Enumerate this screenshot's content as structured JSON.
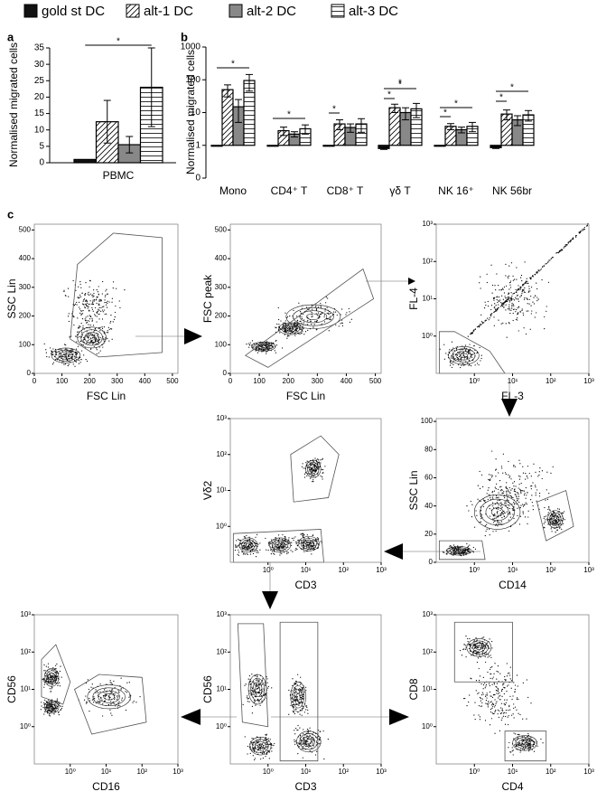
{
  "chart_data": [
    {
      "type": "bar",
      "panel_label": "a",
      "ylabel": "Normalised migrated cells",
      "categories": [
        "PBMC"
      ],
      "series": [
        {
          "name": "gold st DC",
          "color": "#111111",
          "hatch": null,
          "values": [
            1
          ],
          "errors": [
            0
          ]
        },
        {
          "name": "alt-1 DC",
          "color": "#ffffff",
          "hatch": "diagonal",
          "values": [
            12.5
          ],
          "errors": [
            6.5
          ]
        },
        {
          "name": "alt-2 DC",
          "color": "#888888",
          "hatch": null,
          "values": [
            5.5
          ],
          "errors": [
            2.5
          ]
        },
        {
          "name": "alt-3 DC",
          "color": "#ffffff",
          "hatch": "horizontal",
          "values": [
            23
          ],
          "errors": [
            12
          ]
        }
      ],
      "ylim": [
        0,
        35
      ],
      "yticks": [
        0,
        5,
        10,
        15,
        20,
        25,
        30,
        35
      ],
      "annotations": [
        "*"
      ]
    },
    {
      "type": "bar",
      "panel_label": "b",
      "ylabel": "Normalised migrated cells",
      "log_scale": true,
      "categories": [
        "Mono",
        "CD4⁺ T",
        "CD8⁺ T",
        "γδ T",
        "NK 16⁺",
        "NK 56br"
      ],
      "series": [
        {
          "color": "#111111",
          "hatch": null,
          "values": [
            1,
            1,
            1,
            0.8,
            1,
            0.85
          ],
          "errors": [
            0,
            0,
            0,
            0.05,
            0,
            0.05
          ]
        },
        {
          "color": "#ffffff",
          "hatch": "diagonal",
          "values": [
            50,
            2.8,
            4.5,
            14,
            3.8,
            9
          ],
          "errors": [
            20,
            0.8,
            1.5,
            4,
            0.8,
            3
          ]
        },
        {
          "color": "#888888",
          "hatch": null,
          "values": [
            15,
            2.2,
            3.5,
            10,
            3,
            6
          ],
          "errors": [
            10,
            0.4,
            1,
            4,
            0.6,
            2
          ]
        },
        {
          "color": "#ffffff",
          "hatch": "horizontal",
          "values": [
            95,
            3.2,
            4.5,
            13,
            3.8,
            8.5
          ],
          "errors": [
            50,
            1,
            2,
            6,
            1.2,
            3
          ]
        }
      ],
      "ylim": [
        0.1,
        1000
      ],
      "yticks": [
        {
          "value": 0.1,
          "label": "0"
        },
        1,
        10,
        100,
        1000
      ],
      "annotations": [
        "*",
        "*",
        "*",
        "*",
        "*",
        "*",
        "*",
        "*",
        "*",
        "*"
      ]
    }
  ],
  "flow_panel_label": "c",
  "flow_panels": [
    {
      "xlabel": "FSC Lin",
      "ylabel": "SSC Lin",
      "xlim": [
        0,
        520
      ],
      "ylim": [
        0,
        520
      ],
      "xticks": [
        0,
        100,
        200,
        300,
        400,
        500
      ],
      "yticks": [
        0,
        100,
        200,
        300,
        400,
        500
      ]
    },
    {
      "xlabel": "FSC Lin",
      "ylabel": "FSC peak",
      "xlim": [
        0,
        520
      ],
      "ylim": [
        0,
        520
      ],
      "xticks": [
        0,
        100,
        200,
        300,
        400,
        500
      ],
      "yticks": [
        0,
        100,
        200,
        300,
        400,
        500
      ]
    },
    {
      "xlabel": "FL-3",
      "ylabel": "FL-4",
      "xlog": true,
      "ylog": true,
      "xlim": [
        0.1,
        1000
      ],
      "ylim": [
        0.1,
        1000
      ],
      "xticks": [
        {
          "value": 1,
          "label": "10⁰"
        },
        {
          "value": 10,
          "label": "10¹"
        },
        {
          "value": 100,
          "label": "10²"
        },
        {
          "value": 1000,
          "label": "10³"
        }
      ],
      "yticks": [
        {
          "value": 1,
          "label": "10⁰"
        },
        {
          "value": 10,
          "label": "10¹"
        },
        {
          "value": 100,
          "label": "10²"
        },
        {
          "value": 1000,
          "label": "10³"
        }
      ]
    },
    {
      "xlabel": "CD3",
      "ylabel": "Vδ2",
      "xlog": true,
      "ylog": true,
      "xlim": [
        0.1,
        1000
      ],
      "ylim": [
        0.1,
        1000
      ],
      "xticks": [
        {
          "value": 1,
          "label": "10⁰"
        },
        {
          "value": 10,
          "label": "10¹"
        },
        {
          "value": 100,
          "label": "10²"
        },
        {
          "value": 1000,
          "label": "10³"
        }
      ],
      "yticks": [
        {
          "value": 1,
          "label": "10⁰"
        },
        {
          "value": 10,
          "label": "10¹"
        },
        {
          "value": 100,
          "label": "10²"
        },
        {
          "value": 1000,
          "label": "10³"
        }
      ]
    },
    {
      "xlabel": "CD14",
      "ylabel": "SSC Lin",
      "xlog": true,
      "xlim": [
        0.1,
        1000
      ],
      "ylim": [
        0,
        102
      ],
      "xticks": [
        {
          "value": 1,
          "label": "10⁰"
        },
        {
          "value": 10,
          "label": "10¹"
        },
        {
          "value": 100,
          "label": "10²"
        },
        {
          "value": 1000,
          "label": "10³"
        }
      ],
      "yticks": [
        0,
        20,
        40,
        60,
        80,
        100
      ]
    },
    {
      "xlabel": "CD16",
      "ylabel": "CD56",
      "xlog": true,
      "ylog": true,
      "xlim": [
        0.1,
        1000
      ],
      "ylim": [
        0.1,
        1000
      ],
      "xticks": [
        {
          "value": 1,
          "label": "10⁰"
        },
        {
          "value": 10,
          "label": "10¹"
        },
        {
          "value": 100,
          "label": "10²"
        },
        {
          "value": 1000,
          "label": "10³"
        }
      ],
      "yticks": [
        {
          "value": 1,
          "label": "10⁰"
        },
        {
          "value": 10,
          "label": "10¹"
        },
        {
          "value": 100,
          "label": "10²"
        },
        {
          "value": 1000,
          "label": "10³"
        }
      ]
    },
    {
      "xlabel": "CD3",
      "ylabel": "CD56",
      "xlog": true,
      "ylog": true,
      "xlim": [
        0.1,
        1000
      ],
      "ylim": [
        0.1,
        1000
      ],
      "xticks": [
        {
          "value": 1,
          "label": "10⁰"
        },
        {
          "value": 10,
          "label": "10¹"
        },
        {
          "value": 100,
          "label": "10²"
        },
        {
          "value": 1000,
          "label": "10³"
        }
      ],
      "yticks": [
        {
          "value": 1,
          "label": "10⁰"
        },
        {
          "value": 10,
          "label": "10¹"
        },
        {
          "value": 100,
          "label": "10²"
        },
        {
          "value": 1000,
          "label": "10³"
        }
      ]
    },
    {
      "xlabel": "CD4",
      "ylabel": "CD8",
      "xlog": true,
      "ylog": true,
      "xlim": [
        0.1,
        1000
      ],
      "ylim": [
        0.1,
        1000
      ],
      "xticks": [
        {
          "value": 1,
          "label": "10⁰"
        },
        {
          "value": 10,
          "label": "10¹"
        },
        {
          "value": 100,
          "label": "10²"
        },
        {
          "value": 1000,
          "label": "10³"
        }
      ],
      "yticks": [
        {
          "value": 1,
          "label": "10⁰"
        },
        {
          "value": 10,
          "label": "10¹"
        },
        {
          "value": 100,
          "label": "10²"
        },
        {
          "value": 1000,
          "label": "10³"
        }
      ]
    }
  ]
}
